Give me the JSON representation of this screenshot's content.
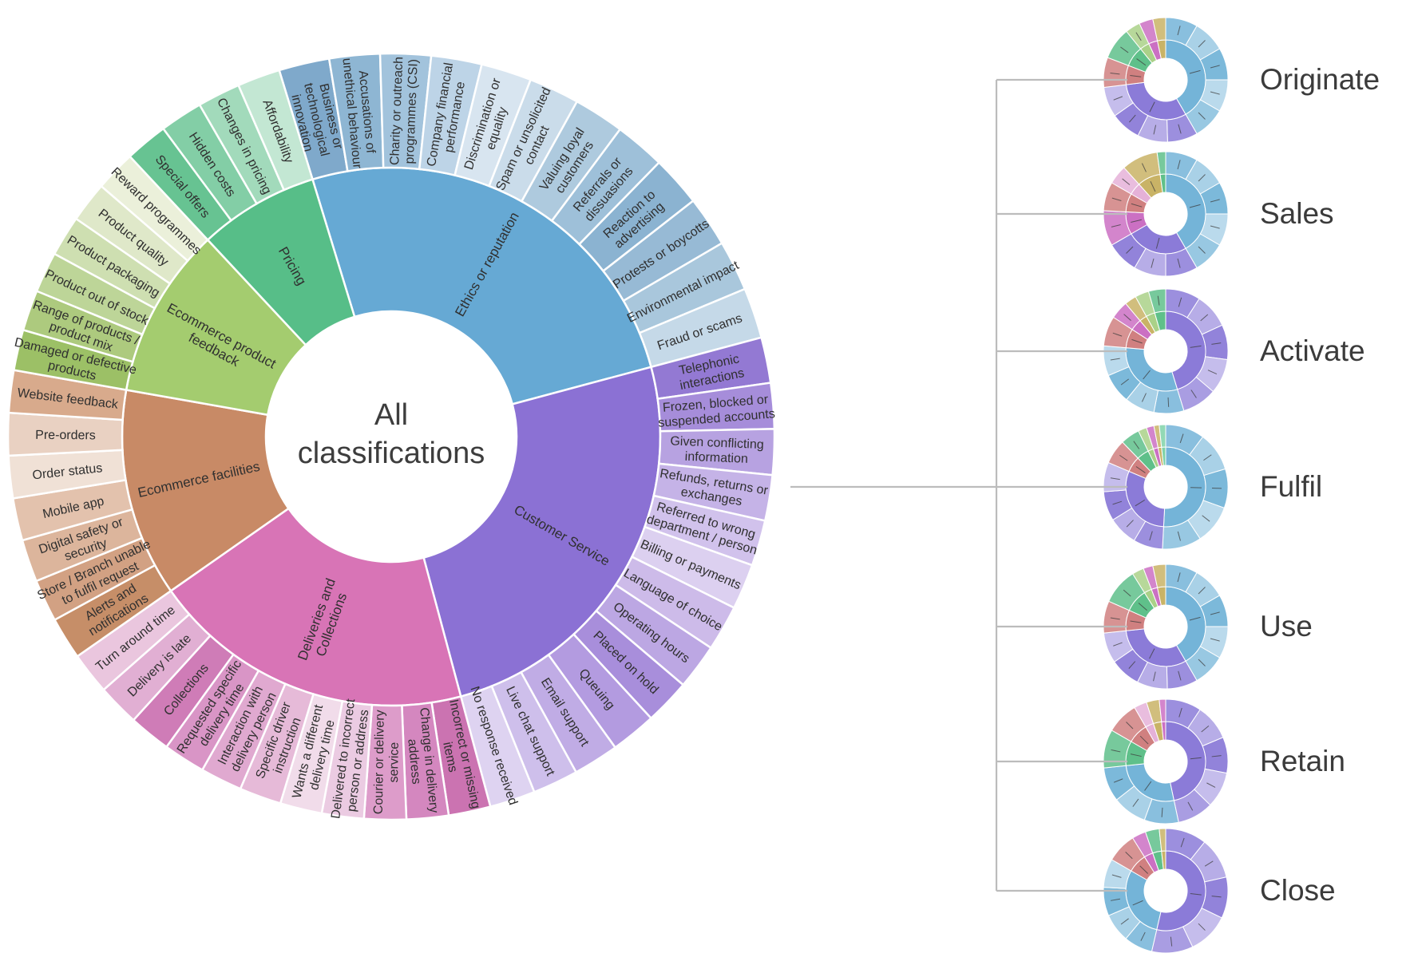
{
  "page": {
    "background": "#ffffff",
    "text_color": "#303030",
    "connector_color": "#bcbcbc"
  },
  "center": {
    "line1": "All",
    "line2": "classifications"
  },
  "stages": [
    {
      "label": "Originate"
    },
    {
      "label": "Sales"
    },
    {
      "label": "Activate"
    },
    {
      "label": "Fulfil"
    },
    {
      "label": "Use"
    },
    {
      "label": "Retain"
    },
    {
      "label": "Close"
    }
  ],
  "chart_data": {
    "type": "sunburst",
    "title": "All classifications",
    "rings": [
      "category",
      "subcategory"
    ],
    "start_angle_deg": -17,
    "units": "angular span (degrees, estimated from pixels)",
    "categories": [
      {
        "name": "Ethics or reputation",
        "label_lines": [
          "Ethics or reputation"
        ],
        "color": "#66a9d4",
        "span_deg": 92,
        "children": [
          {
            "label": "Business or technological innovation",
            "lines": [
              "Business or",
              "technological",
              "innovation"
            ],
            "color": "#7fa9cb"
          },
          {
            "label": "Accusations of unethical behaviour",
            "lines": [
              "Accusations of",
              "unethical behaviour"
            ],
            "color": "#8eb6d3"
          },
          {
            "label": "Charity or outreach programmes (CSI)",
            "lines": [
              "Charity or outreach",
              "programmes (CSI)"
            ],
            "color": "#a2c3dc"
          },
          {
            "label": "Company financial performance",
            "lines": [
              "Company financial",
              "performance"
            ],
            "color": "#bdd4e7"
          },
          {
            "label": "Discrimination or equality",
            "lines": [
              "Discrimination or",
              "equality"
            ],
            "color": "#d8e5f0"
          },
          {
            "label": "Spam or unsolicited contact",
            "lines": [
              "Spam or unsolicited",
              "contact"
            ],
            "color": "#cadcea"
          },
          {
            "label": "Valuing loyal customers",
            "lines": [
              "Valuing loyal",
              "customers"
            ],
            "color": "#aecade"
          },
          {
            "label": "Referrals or dissuasions",
            "lines": [
              "Referrals or",
              "dissuasions"
            ],
            "color": "#9ec0d9"
          },
          {
            "label": "Reaction to advertising",
            "lines": [
              "Reaction to",
              "advertising"
            ],
            "color": "#8bb3d1"
          },
          {
            "label": "Protests or boycotts",
            "lines": [
              "Protests or boycotts"
            ],
            "color": "#97bad5"
          },
          {
            "label": "Environmental impact",
            "lines": [
              "Environmental impact"
            ],
            "color": "#a9c7dc"
          },
          {
            "label": "Fraud or scams",
            "lines": [
              "Fraud or scams"
            ],
            "color": "#c5d9e8"
          }
        ]
      },
      {
        "name": "Customer Service",
        "label_lines": [
          "Customer Service"
        ],
        "color": "#8b71d4",
        "span_deg": 90,
        "children": [
          {
            "label": "Telephonic interactions",
            "lines": [
              "Telephonic",
              "interactions"
            ],
            "color": "#9379d3"
          },
          {
            "label": "Frozen, blocked or suspended accounts",
            "lines": [
              "Frozen, blocked or",
              "suspended accounts"
            ],
            "color": "#a68dda"
          },
          {
            "label": "Given conflicting information",
            "lines": [
              "Given conflicting",
              "information"
            ],
            "color": "#b7a2e1"
          },
          {
            "label": "Refunds, returns or exchanges",
            "lines": [
              "Refunds, returns or",
              "exchanges"
            ],
            "color": "#c5b3e7"
          },
          {
            "label": "Referred to wrong department / person",
            "lines": [
              "Referred to wrong",
              "department / person"
            ],
            "color": "#d1c2ec"
          },
          {
            "label": "Billing or payments",
            "lines": [
              "Billing or payments"
            ],
            "color": "#dcd0f0"
          },
          {
            "label": "Language of choice",
            "lines": [
              "Language of choice"
            ],
            "color": "#cdbbe9"
          },
          {
            "label": "Operating hours",
            "lines": [
              "Operating hours"
            ],
            "color": "#bca7e3"
          },
          {
            "label": "Placed on hold",
            "lines": [
              "Placed on hold"
            ],
            "color": "#a88edb"
          },
          {
            "label": "Queuing",
            "lines": [
              "Queuing"
            ],
            "color": "#b39be0"
          },
          {
            "label": "Email support",
            "lines": [
              "Email support"
            ],
            "color": "#c0ace5"
          },
          {
            "label": "Live chat support",
            "lines": [
              "Live chat support"
            ],
            "color": "#cebfeb"
          },
          {
            "label": "No response received",
            "lines": [
              "No response received"
            ],
            "color": "#ded3f1"
          }
        ]
      },
      {
        "name": "Deliveries and Collections",
        "label_lines": [
          "Deliveries and",
          "Collections"
        ],
        "color": "#d874b6",
        "span_deg": 70,
        "children": [
          {
            "label": "Incorrect or missing items",
            "lines": [
              "Incorrect or missing",
              "items"
            ],
            "color": "#cb73b1"
          },
          {
            "label": "Change in delivery address",
            "lines": [
              "Change in delivery",
              "address"
            ],
            "color": "#d487bf"
          },
          {
            "label": "Courier or delivery service",
            "lines": [
              "Courier or delivery",
              "service"
            ],
            "color": "#dd9cca"
          },
          {
            "label": "Delivered to incorrect person or address",
            "lines": [
              "Delivered to incorrect",
              "person or address"
            ],
            "color": "#ebcbe2"
          },
          {
            "label": "Wants a different delivery time",
            "lines": [
              "Wants a different",
              "delivery time"
            ],
            "color": "#f1dcea"
          },
          {
            "label": "Specific driver instruction",
            "lines": [
              "Specific driver",
              "instruction"
            ],
            "color": "#e6bad8"
          },
          {
            "label": "Interaction with delivery person",
            "lines": [
              "Interaction with",
              "delivery person"
            ],
            "color": "#e0a9d0"
          },
          {
            "label": "Requested specific delivery time",
            "lines": [
              "Requested specific",
              "delivery time"
            ],
            "color": "#d995c6"
          },
          {
            "label": "Collections",
            "lines": [
              "Collections"
            ],
            "color": "#cf7cb7"
          },
          {
            "label": "Delivery is late",
            "lines": [
              "Delivery is late"
            ],
            "color": "#e1afd3"
          },
          {
            "label": "Turn around time",
            "lines": [
              "Turn around time"
            ],
            "color": "#eac6de"
          }
        ]
      },
      {
        "name": "Ecommerce facilities",
        "label_lines": [
          "Ecommerce facilities"
        ],
        "color": "#c88a66",
        "span_deg": 45,
        "children": [
          {
            "label": "Alerts and notifications",
            "lines": [
              "Alerts and",
              "notifications"
            ],
            "color": "#c68e68"
          },
          {
            "label": "Store / Branch unable to fulfil request",
            "lines": [
              "Store / Branch unable",
              "to fulfil request"
            ],
            "color": "#d2a183"
          },
          {
            "label": "Digital safety or security",
            "lines": [
              "Digital safety or",
              "security"
            ],
            "color": "#dcb59c"
          },
          {
            "label": "Mobile app",
            "lines": [
              "Mobile app"
            ],
            "color": "#e3c2ad"
          },
          {
            "label": "Order status",
            "lines": [
              "Order status"
            ],
            "color": "#f0e1d6"
          },
          {
            "label": "Pre-orders",
            "lines": [
              "Pre-orders"
            ],
            "color": "#e9d1c2"
          },
          {
            "label": "Website feedback",
            "lines": [
              "Website feedback"
            ],
            "color": "#d8aa8c"
          }
        ]
      },
      {
        "name": "Ecommerce product feedback",
        "label_lines": [
          "Ecommerce product",
          "feedback"
        ],
        "color": "#a4cc6f",
        "span_deg": 37,
        "children": [
          {
            "label": "Damaged or defective products",
            "lines": [
              "Damaged or defective",
              "products"
            ],
            "color": "#9cc066"
          },
          {
            "label": "Range of products / product mix",
            "lines": [
              "Range of products /",
              "product mix"
            ],
            "color": "#adca7e"
          },
          {
            "label": "Product out of stock",
            "lines": [
              "Product out of stock"
            ],
            "color": "#bdd598"
          },
          {
            "label": "Product packaging",
            "lines": [
              "Product packaging"
            ],
            "color": "#cedfb1"
          },
          {
            "label": "Product quality",
            "lines": [
              "Product quality"
            ],
            "color": "#dfe8c9"
          },
          {
            "label": "Reward programmes",
            "lines": [
              "Reward programmes"
            ],
            "color": "#ebf0da"
          }
        ]
      },
      {
        "name": "Pricing",
        "label_lines": [
          "Pricing"
        ],
        "color": "#57be88",
        "span_deg": 26,
        "children": [
          {
            "label": "Special offers",
            "lines": [
              "Special offers"
            ],
            "color": "#67c392"
          },
          {
            "label": "Hidden costs",
            "lines": [
              "Hidden costs"
            ],
            "color": "#83cea6"
          },
          {
            "label": "Changes in pricing",
            "lines": [
              "Changes in pricing"
            ],
            "color": "#a2dabb"
          },
          {
            "label": "Affordability",
            "lines": [
              "Affordability"
            ],
            "color": "#c3e7d3"
          }
        ]
      }
    ],
    "mini_palette": {
      "blue": "#74b4d8",
      "purple": "#8b7bd8",
      "red": "#d08080",
      "green": "#5fc08a",
      "lgreen": "#aad188",
      "magenta": "#cb70c3",
      "gold": "#c9b366",
      "pink": "#e5b1d8",
      "mint": "#7fd2a8"
    },
    "mini_charts": [
      {
        "label": "Originate",
        "segments": [
          {
            "c": "blue",
            "d": 150
          },
          {
            "c": "purple",
            "d": 113
          },
          {
            "c": "red",
            "d": 28
          },
          {
            "c": "green",
            "d": 30
          },
          {
            "c": "lgreen",
            "d": 14
          },
          {
            "c": "magenta",
            "d": 13
          },
          {
            "c": "gold",
            "d": 12
          }
        ]
      },
      {
        "label": "Sales",
        "segments": [
          {
            "c": "blue",
            "d": 150
          },
          {
            "c": "purple",
            "d": 90
          },
          {
            "c": "magenta",
            "d": 33
          },
          {
            "c": "red",
            "d": 27
          },
          {
            "c": "pink",
            "d": 18
          },
          {
            "c": "gold",
            "d": 34
          },
          {
            "c": "green",
            "d": 8
          }
        ]
      },
      {
        "label": "Activate",
        "segments": [
          {
            "c": "purple",
            "d": 163
          },
          {
            "c": "blue",
            "d": 112
          },
          {
            "c": "red",
            "d": 28
          },
          {
            "c": "magenta",
            "d": 17
          },
          {
            "c": "gold",
            "d": 11
          },
          {
            "c": "lgreen",
            "d": 13
          },
          {
            "c": "green",
            "d": 16
          }
        ]
      },
      {
        "label": "Fulfil",
        "segments": [
          {
            "c": "blue",
            "d": 183
          },
          {
            "c": "purple",
            "d": 110
          },
          {
            "c": "red",
            "d": 23
          },
          {
            "c": "green",
            "d": 18
          },
          {
            "c": "lgreen",
            "d": 8
          },
          {
            "c": "magenta",
            "d": 7
          },
          {
            "c": "gold",
            "d": 5
          },
          {
            "c": "mint",
            "d": 6
          }
        ]
      },
      {
        "label": "Use",
        "segments": [
          {
            "c": "blue",
            "d": 150
          },
          {
            "c": "purple",
            "d": 114
          },
          {
            "c": "red",
            "d": 30
          },
          {
            "c": "green",
            "d": 34
          },
          {
            "c": "lgreen",
            "d": 11
          },
          {
            "c": "magenta",
            "d": 9
          },
          {
            "c": "gold",
            "d": 12
          }
        ]
      },
      {
        "label": "Retain",
        "segments": [
          {
            "c": "purple",
            "d": 168
          },
          {
            "c": "blue",
            "d": 96
          },
          {
            "c": "green",
            "d": 36
          },
          {
            "c": "red",
            "d": 30
          },
          {
            "c": "pink",
            "d": 12
          },
          {
            "c": "gold",
            "d": 12
          },
          {
            "c": "magenta",
            "d": 6
          }
        ]
      },
      {
        "label": "Close",
        "segments": [
          {
            "c": "purple",
            "d": 193
          },
          {
            "c": "blue",
            "d": 107
          },
          {
            "c": "red",
            "d": 28
          },
          {
            "c": "magenta",
            "d": 13
          },
          {
            "c": "green",
            "d": 13
          },
          {
            "c": "gold",
            "d": 6
          }
        ]
      }
    ]
  }
}
